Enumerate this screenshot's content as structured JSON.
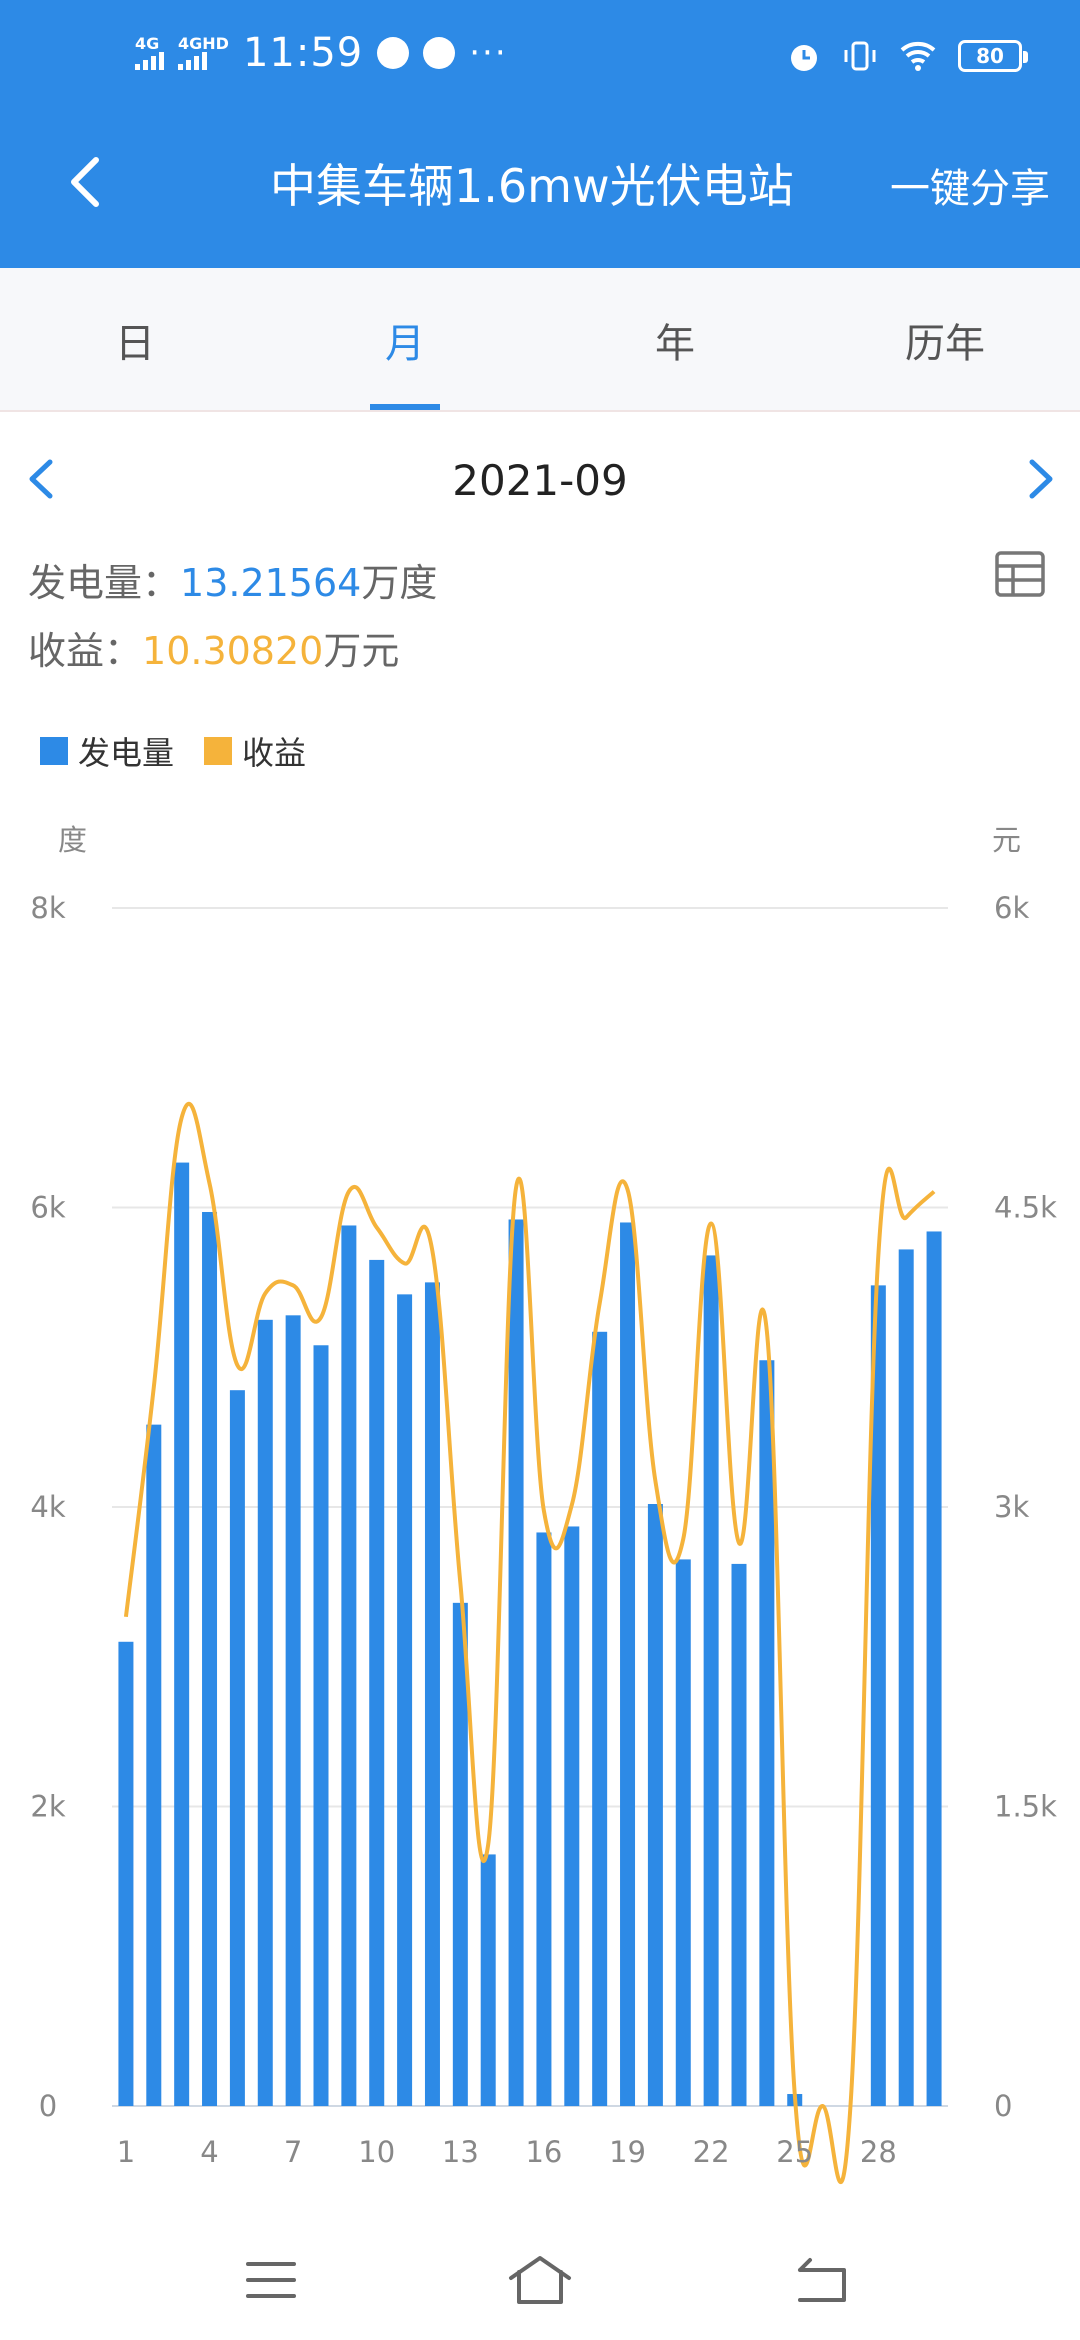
{
  "status_bar": {
    "net1": "4G",
    "net2": "4GHD",
    "time": "11:59",
    "dots": "···",
    "battery": "80"
  },
  "header": {
    "title": "中集车辆1.6mw光伏电站",
    "share": "一键分享"
  },
  "tabs": [
    "日",
    "月",
    "年",
    "历年"
  ],
  "active_tab": "月",
  "date": "2021-09",
  "stats": {
    "gen_label": "发电量：",
    "gen_value": "13.21564",
    "gen_unit": "万度",
    "income_label": "收益：",
    "income_value": "10.30820",
    "income_unit": "万元"
  },
  "legend": {
    "gen": "发电量",
    "income": "收益"
  },
  "colors": {
    "brand": "#2d8ae6",
    "income": "#f5b33b"
  },
  "chart_data": {
    "type": "bar",
    "y_left_unit": "度",
    "y_right_unit": "元",
    "y_left_ticks": [
      "0",
      "2k",
      "4k",
      "6k",
      "8k"
    ],
    "y_right_ticks": [
      "0",
      "1.5k",
      "3k",
      "4.5k",
      "6k"
    ],
    "x_ticks": [
      "1",
      "4",
      "7",
      "10",
      "13",
      "16",
      "19",
      "22",
      "25",
      "28"
    ],
    "ylim_left": [
      0,
      8000
    ],
    "ylim_right": [
      0,
      6000
    ],
    "x": [
      1,
      2,
      3,
      4,
      5,
      6,
      7,
      8,
      9,
      10,
      11,
      12,
      13,
      14,
      15,
      16,
      17,
      18,
      19,
      20,
      21,
      22,
      23,
      24,
      25,
      26,
      27,
      28,
      29,
      30
    ],
    "series": [
      {
        "name": "发电量",
        "type": "bar",
        "axis": "left",
        "values": [
          3100,
          4550,
          6300,
          5970,
          4780,
          5250,
          5280,
          5080,
          5880,
          5650,
          5420,
          5500,
          3360,
          1680,
          5920,
          3830,
          3870,
          5170,
          5900,
          4020,
          3650,
          5680,
          3620,
          4980,
          80,
          0,
          0,
          5480,
          5720,
          5840
        ]
      },
      {
        "name": "收益",
        "type": "line",
        "axis": "right",
        "values": [
          2450,
          3600,
          4950,
          4620,
          3710,
          4070,
          4110,
          3950,
          4580,
          4400,
          4220,
          4280,
          2620,
          1310,
          4600,
          2980,
          3010,
          4020,
          4590,
          3130,
          2840,
          4420,
          2820,
          3880,
          60,
          0,
          0,
          4260,
          4450,
          4580
        ]
      }
    ]
  }
}
